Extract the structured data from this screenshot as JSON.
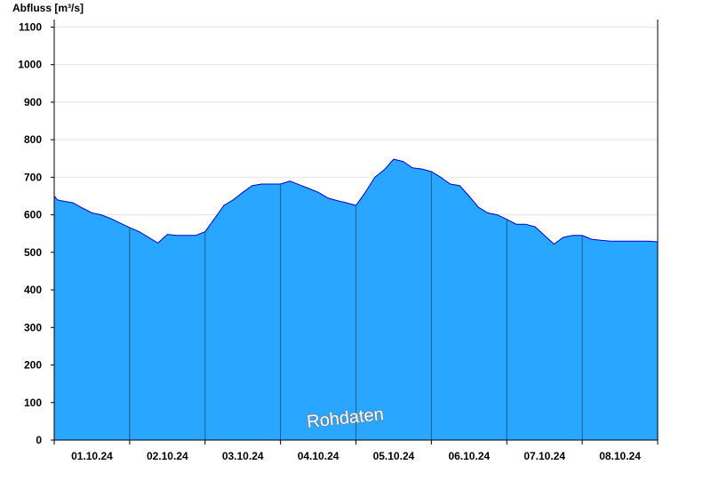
{
  "chart_data": {
    "type": "area",
    "ylabel": "Abfluss [m³/s]",
    "ylim": [
      0,
      1120
    ],
    "yticks": [
      0,
      100,
      200,
      300,
      400,
      500,
      600,
      700,
      800,
      900,
      1000,
      1100
    ],
    "xlim": [
      "2024-10-01T00:00",
      "2024-10-09T00:00"
    ],
    "day_labels": [
      "01.10.24",
      "02.10.24",
      "03.10.24",
      "04.10.24",
      "05.10.24",
      "06.10.24",
      "07.10.24",
      "08.10.24"
    ],
    "grid": true,
    "watermark": "Rohdaten",
    "fill_color": "#29a6ff",
    "line_color": "#0000cc",
    "series": [
      {
        "x": [
          "2024-10-01T00:00",
          "2024-10-01T01:00",
          "2024-10-01T02:00",
          "2024-10-01T06:00",
          "2024-10-01T09:00",
          "2024-10-01T12:00",
          "2024-10-01T15:00",
          "2024-10-01T18:00",
          "2024-10-01T21:00",
          "2024-10-02T00:00",
          "2024-10-02T03:00",
          "2024-10-02T06:00",
          "2024-10-02T09:00",
          "2024-10-02T12:00",
          "2024-10-02T15:00",
          "2024-10-02T18:00",
          "2024-10-02T21:00",
          "2024-10-03T00:00",
          "2024-10-03T03:00",
          "2024-10-03T06:00",
          "2024-10-03T09:00",
          "2024-10-03T12:00",
          "2024-10-03T15:00",
          "2024-10-03T18:00",
          "2024-10-03T21:00",
          "2024-10-04T00:00",
          "2024-10-04T03:00",
          "2024-10-04T06:00",
          "2024-10-04T09:00",
          "2024-10-04T12:00",
          "2024-10-04T15:00",
          "2024-10-04T18:00",
          "2024-10-04T21:00",
          "2024-10-05T00:00",
          "2024-10-05T03:00",
          "2024-10-05T06:00",
          "2024-10-05T09:00",
          "2024-10-05T12:00",
          "2024-10-05T15:00",
          "2024-10-05T18:00",
          "2024-10-05T21:00",
          "2024-10-06T00:00",
          "2024-10-06T03:00",
          "2024-10-06T06:00",
          "2024-10-06T09:00",
          "2024-10-06T12:00",
          "2024-10-06T15:00",
          "2024-10-06T18:00",
          "2024-10-06T21:00",
          "2024-10-07T00:00",
          "2024-10-07T03:00",
          "2024-10-07T06:00",
          "2024-10-07T09:00",
          "2024-10-07T12:00",
          "2024-10-07T15:00",
          "2024-10-07T18:00",
          "2024-10-07T21:00",
          "2024-10-08T00:00",
          "2024-10-08T03:00",
          "2024-10-08T06:00",
          "2024-10-08T09:00",
          "2024-10-08T12:00",
          "2024-10-08T15:00",
          "2024-10-08T18:00",
          "2024-10-08T21:00",
          "2024-10-09T00:00"
        ],
        "y": [
          650,
          640,
          638,
          632,
          618,
          605,
          600,
          590,
          578,
          566,
          555,
          540,
          525,
          548,
          545,
          545,
          545,
          555,
          590,
          625,
          640,
          660,
          678,
          682,
          682,
          682,
          690,
          680,
          670,
          660,
          645,
          638,
          632,
          625,
          660,
          700,
          720,
          748,
          742,
          725,
          722,
          715,
          700,
          682,
          678,
          650,
          620,
          605,
          600,
          588,
          575,
          575,
          568,
          545,
          522,
          540,
          545,
          545,
          535,
          532,
          530,
          530,
          530,
          530,
          530,
          528
        ]
      }
    ]
  }
}
